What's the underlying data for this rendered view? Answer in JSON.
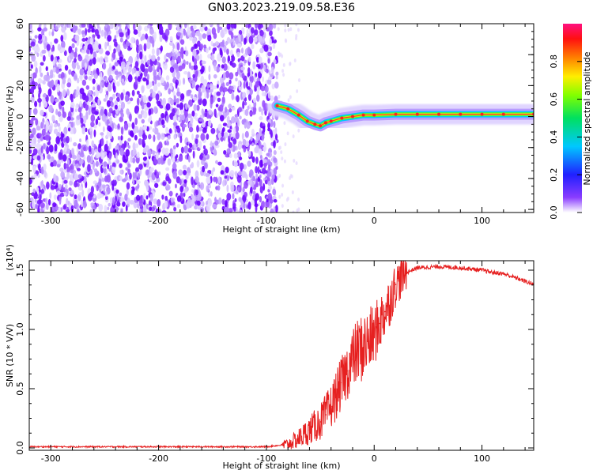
{
  "title": "GN03.2023.219.09.58.E36",
  "chart_data": [
    {
      "type": "heatmap",
      "xlabel": "Height of straight line (km)",
      "ylabel": "Frequency (Hz)",
      "xlim": [
        -320,
        148
      ],
      "ylim": [
        -62,
        60
      ],
      "xticks": [
        -300,
        -200,
        -100,
        0,
        100
      ],
      "yticks": [
        -60,
        -40,
        -20,
        0,
        20,
        40,
        60
      ],
      "noise_region_x": [
        -320,
        -90
      ],
      "signal_trace": {
        "x": [
          -90,
          -80,
          -70,
          -62,
          -55,
          -50,
          -45,
          -40,
          -30,
          -20,
          -10,
          0,
          20,
          40,
          60,
          80,
          100,
          120,
          148
        ],
        "y": [
          7,
          5,
          1,
          -3,
          -5,
          -6,
          -4,
          -3,
          -1,
          0,
          1,
          1,
          1.5,
          1.5,
          1.5,
          1.5,
          1.5,
          1.5,
          1.5
        ]
      },
      "colorbar": {
        "label": "Normalized spectral amplitude",
        "ticks": [
          0.0,
          0.2,
          0.4,
          0.6,
          0.8
        ],
        "range": [
          0,
          1
        ],
        "colormap": "rainbow"
      }
    },
    {
      "type": "line",
      "xlabel": "Height of straight line (km)",
      "ylabel": "SNR (10 * V/V)",
      "scale_label": "(x10⁴)",
      "xlim": [
        -320,
        148
      ],
      "ylim": [
        -0.02,
        1.58
      ],
      "xticks": [
        -300,
        -200,
        -100,
        0,
        100
      ],
      "yticks": [
        0.0,
        0.5,
        1.0,
        1.5
      ],
      "color": "#e62020",
      "series": [
        {
          "x": [
            -320,
            -200,
            -100,
            -80,
            -70,
            -60,
            -50,
            -45,
            -40,
            -35,
            -30,
            -25,
            -20,
            -15,
            -10,
            -5,
            0,
            5,
            10,
            15,
            20,
            30,
            40,
            60,
            80,
            100,
            110,
            120,
            130,
            148
          ],
          "values": [
            0.01,
            0.01,
            0.01,
            0.03,
            0.08,
            0.15,
            0.22,
            0.28,
            0.35,
            0.45,
            0.55,
            0.65,
            0.75,
            0.82,
            0.85,
            0.9,
            0.95,
            1.05,
            1.15,
            1.25,
            1.38,
            1.48,
            1.52,
            1.53,
            1.52,
            1.5,
            1.48,
            1.47,
            1.44,
            1.38
          ]
        }
      ]
    }
  ]
}
